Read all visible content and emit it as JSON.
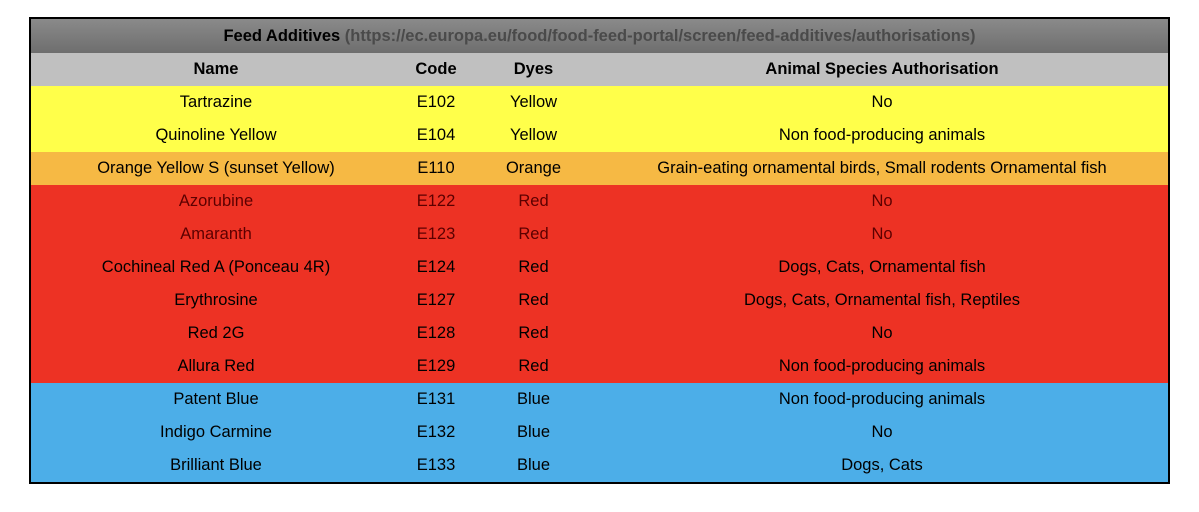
{
  "table": {
    "title": "Feed Additives",
    "url": "(https://ec.europa.eu/food/food-feed-portal/screen/feed-additives/authorisations)",
    "header": [
      "Name",
      "Code",
      "Dyes",
      "Animal Species Authorisation"
    ],
    "rows": [
      {
        "fill": "#ffff4a",
        "text_color": "#000000",
        "cells": [
          "Tartrazine",
          "E102",
          "Yellow",
          "No"
        ]
      },
      {
        "fill": "#ffff4a",
        "text_color": "#000000",
        "cells": [
          "Quinoline Yellow",
          "E104",
          "Yellow",
          "Non food-producing animals"
        ]
      },
      {
        "fill": "#f6b944",
        "text_color": "#000000",
        "cells": [
          "Orange Yellow S (sunset Yellow)",
          "E110",
          "Orange",
          "Grain-eating ornamental birds, Small rodents Ornamental fish"
        ]
      },
      {
        "fill": "#ed3224",
        "text_color": "#5c0000",
        "cells": [
          "Azorubine",
          "E122",
          "Red",
          "No"
        ]
      },
      {
        "fill": "#ed3224",
        "text_color": "#5c0000",
        "cells": [
          "Amaranth",
          "E123",
          "Red",
          "No"
        ]
      },
      {
        "fill": "#ed3224",
        "text_color": "#000000",
        "cells": [
          "Cochineal Red A (Ponceau 4R)",
          "E124",
          "Red",
          "Dogs, Cats, Ornamental fish"
        ]
      },
      {
        "fill": "#ed3224",
        "text_color": "#000000",
        "cells": [
          "Erythrosine",
          "E127",
          "Red",
          "Dogs, Cats, Ornamental fish, Reptiles"
        ]
      },
      {
        "fill": "#ed3224",
        "text_color": "#000000",
        "cells": [
          "Red 2G",
          "E128",
          "Red",
          "No"
        ]
      },
      {
        "fill": "#ed3224",
        "text_color": "#000000",
        "cells": [
          "Allura Red",
          "E129",
          "Red",
          "Non food-producing animals"
        ]
      },
      {
        "fill": "#4caee8",
        "text_color": "#000000",
        "cells": [
          "Patent Blue",
          "E131",
          "Blue",
          "Non food-producing animals"
        ]
      },
      {
        "fill": "#4caee8",
        "text_color": "#000000",
        "cells": [
          "Indigo Carmine",
          "E132",
          "Blue",
          "No"
        ]
      },
      {
        "fill": "#4caee8",
        "text_color": "#000000",
        "cells": [
          "Brilliant Blue",
          "E133",
          "Blue",
          "Dogs, Cats"
        ]
      }
    ]
  }
}
